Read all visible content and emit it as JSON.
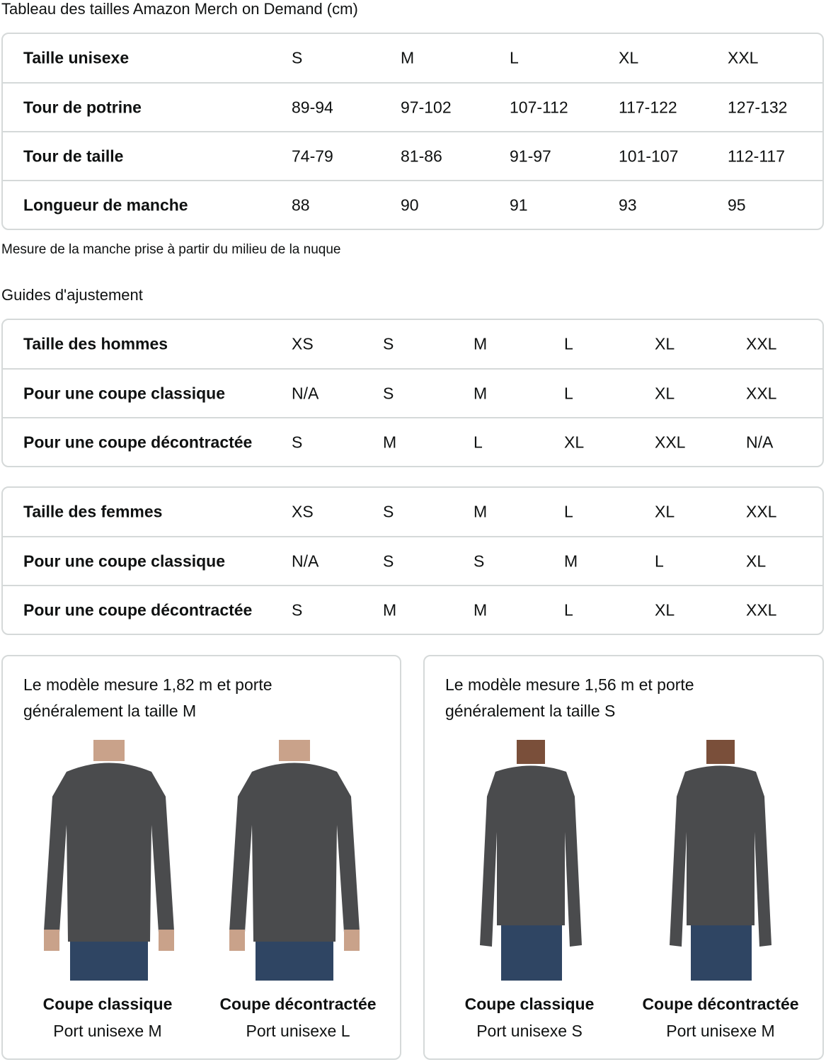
{
  "title": "Tableau des tailles Amazon Merch on Demand (cm)",
  "size_table": {
    "rows": [
      {
        "label": "Taille unisexe",
        "values": [
          "S",
          "M",
          "L",
          "XL",
          "XXL"
        ]
      },
      {
        "label": "Tour de potrine",
        "values": [
          "89-94",
          "97-102",
          "107-112",
          "117-122",
          "127-132"
        ]
      },
      {
        "label": "Tour de taille",
        "values": [
          "74-79",
          "81-86",
          "91-97",
          "101-107",
          "112-117"
        ]
      },
      {
        "label": "Longueur de manche",
        "values": [
          "88",
          "90",
          "91",
          "93",
          "95"
        ]
      }
    ]
  },
  "note": "Mesure de la manche prise à partir du milieu de la nuque",
  "fit_title": "Guides d'ajustement",
  "men_table": {
    "rows": [
      {
        "label": "Taille des hommes",
        "values": [
          "XS",
          "S",
          "M",
          "L",
          "XL",
          "XXL"
        ]
      },
      {
        "label": "Pour une coupe classique",
        "values": [
          "N/A",
          "S",
          "M",
          "L",
          "XL",
          "XXL"
        ]
      },
      {
        "label": "Pour une coupe décontractée",
        "values": [
          "S",
          "M",
          "L",
          "XL",
          "XXL",
          "N/A"
        ]
      }
    ]
  },
  "women_table": {
    "rows": [
      {
        "label": "Taille des femmes",
        "values": [
          "XS",
          "S",
          "M",
          "L",
          "XL",
          "XXL"
        ]
      },
      {
        "label": "Pour une coupe classique",
        "values": [
          "N/A",
          "S",
          "S",
          "M",
          "L",
          "XL"
        ]
      },
      {
        "label": "Pour une coupe décontractée",
        "values": [
          "S",
          "M",
          "M",
          "L",
          "XL",
          "XXL"
        ]
      }
    ]
  },
  "cards": [
    {
      "desc": "Le modèle mesure 1,82 m et porte généralement la taille M",
      "fits": [
        {
          "name": "Coupe classique",
          "size": "Port unisexe M"
        },
        {
          "name": "Coupe décontractée",
          "size": "Port unisexe L"
        }
      ]
    },
    {
      "desc": "Le modèle mesure 1,56 m et porte généralement la taille S",
      "fits": [
        {
          "name": "Coupe classique",
          "size": "Port unisexe S"
        },
        {
          "name": "Coupe décontractée",
          "size": "Port unisexe M"
        }
      ]
    }
  ],
  "colors": {
    "border": "#d5d9d9",
    "shirt": "#4a4b4d",
    "jeans": "#2f4563"
  }
}
